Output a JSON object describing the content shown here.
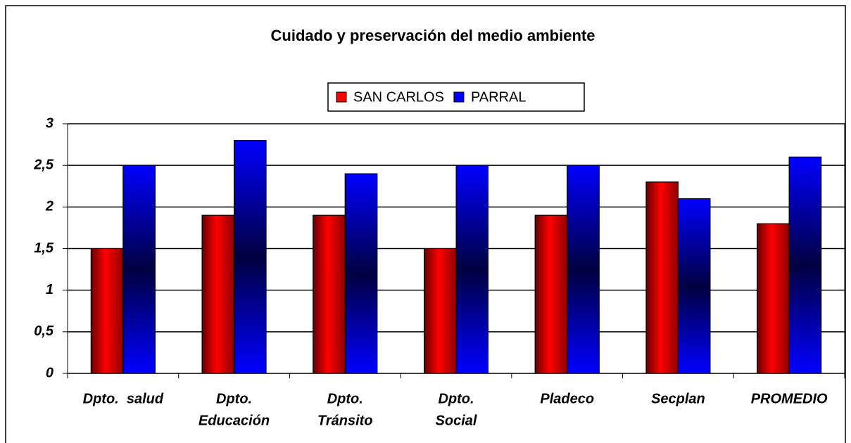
{
  "chart_data": {
    "type": "bar",
    "title": "Cuidado y preservación del medio ambiente",
    "categories": [
      [
        "Dpto.  salud"
      ],
      [
        "Dpto.",
        "Educación"
      ],
      [
        "Dpto.",
        "Tránsito"
      ],
      [
        "Dpto.",
        "Social"
      ],
      [
        "Pladeco"
      ],
      [
        "Secplan"
      ],
      [
        "PROMEDIO"
      ]
    ],
    "series": [
      {
        "name": "SAN CARLOS",
        "color": "#ff0000",
        "values": [
          1.5,
          1.9,
          1.9,
          1.5,
          1.9,
          2.3,
          1.8
        ]
      },
      {
        "name": "PARRAL",
        "color": "#0000ff",
        "values": [
          2.5,
          2.8,
          2.4,
          2.5,
          2.5,
          2.1,
          2.6
        ]
      }
    ],
    "ylim": [
      0,
      3
    ],
    "yticks": [
      0,
      {
        "value": 0.5,
        "label": "0,5"
      },
      1,
      {
        "value": 1.5,
        "label": "1,5"
      },
      2,
      {
        "value": 2.5,
        "label": "2,5"
      },
      3
    ],
    "grid": true,
    "legend": "top"
  }
}
